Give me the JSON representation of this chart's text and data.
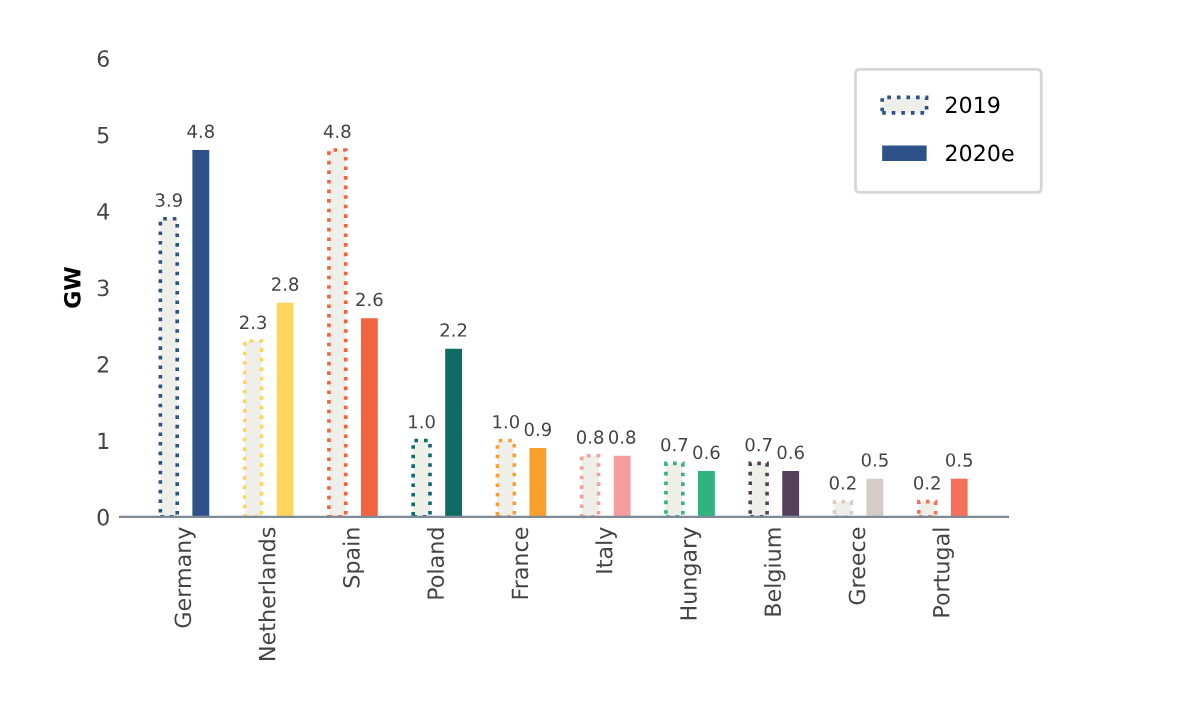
{
  "chart_data": {
    "type": "bar",
    "ylabel": "GW",
    "categories": [
      "Germany",
      "Netherlands",
      "Spain",
      "Poland",
      "France",
      "Italy",
      "Hungary",
      "Belgium",
      "Greece",
      "Portugal"
    ],
    "series": [
      {
        "name": "2019",
        "color": "#2c5289",
        "line_style": "dotted",
        "values": [
          3.9,
          2.3,
          4.8,
          1.0,
          1.0,
          0.8,
          0.7,
          0.7,
          0.2,
          0.2
        ],
        "value_labels": [
          "3.9",
          "2.3",
          "4.8",
          "1.0",
          "1.0",
          "0.8",
          "0.7",
          "0.7",
          "0.2",
          "0.2"
        ],
        "colors": [
          "#2c5289",
          "#fdd65b",
          "#f26440",
          "#0e6b66",
          "#f9a02c",
          "#f49ea0",
          "#2fb37f",
          "#563f5b",
          "#d5ccc8",
          "#f3705a"
        ]
      },
      {
        "name": "2020e",
        "color": "#2c5289",
        "values": [
          4.8,
          2.8,
          2.6,
          2.2,
          0.9,
          0.8,
          0.6,
          0.6,
          0.5,
          0.5
        ],
        "value_labels": [
          "4.8",
          "2.8",
          "2.6",
          "2.2",
          "0.9",
          "0.8",
          "0.6",
          "0.6",
          "0.5",
          "0.5"
        ],
        "colors": [
          "#2c5289",
          "#fdd65b",
          "#f26440",
          "#0e6b66",
          "#f9a02c",
          "#f49ea0",
          "#2fb37f",
          "#563f5b",
          "#d5ccc8",
          "#f3705a"
        ]
      }
    ],
    "ylim": [
      0,
      6
    ],
    "yticks": [
      0,
      1,
      2,
      3,
      4,
      5,
      6
    ],
    "grid": false,
    "legend": "top right"
  }
}
